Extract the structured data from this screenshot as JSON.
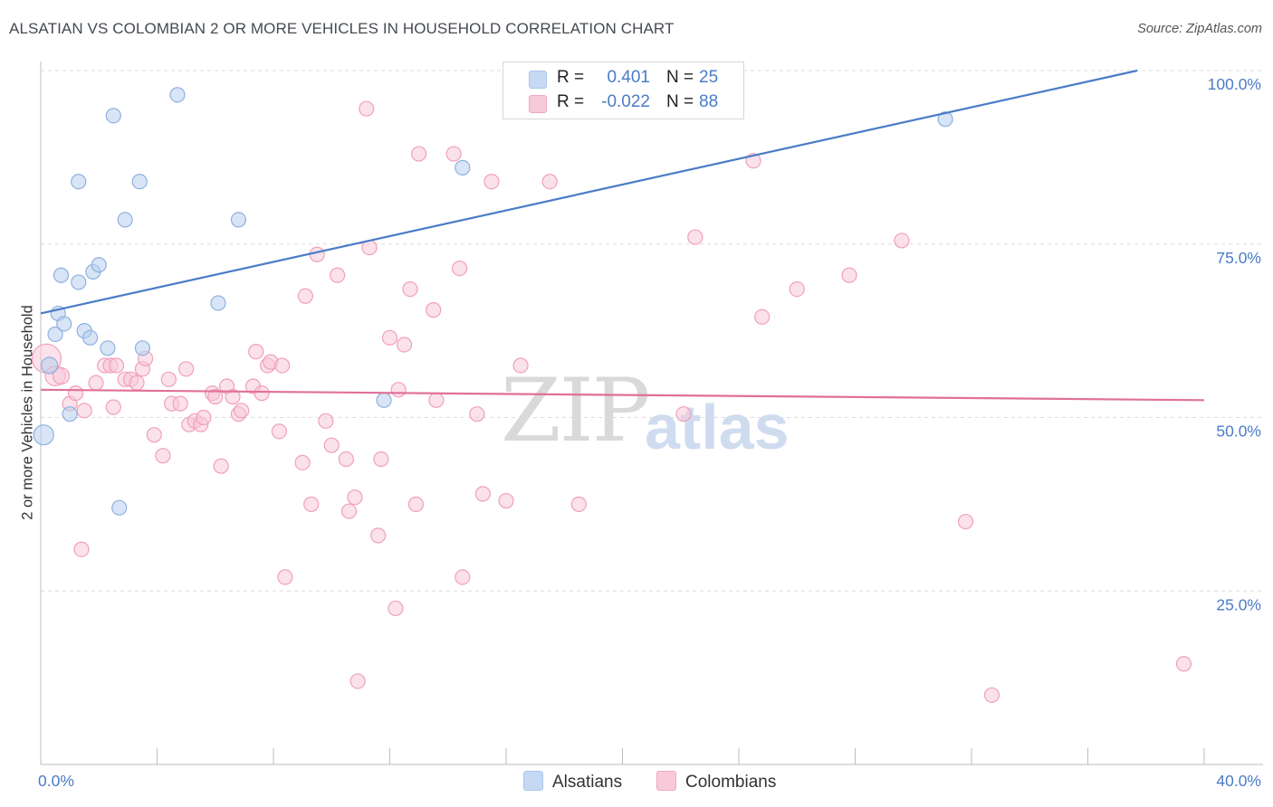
{
  "header": {
    "title": "ALSATIAN VS COLOMBIAN 2 OR MORE VEHICLES IN HOUSEHOLD CORRELATION CHART",
    "source": "Source: ZipAtlas.com"
  },
  "watermark": {
    "zip": "ZIP",
    "atlas": "atlas"
  },
  "legend": {
    "rows": [
      {
        "r_label": "R =",
        "r_value": "0.401",
        "n_label": "N =",
        "n_value": "25",
        "color": "#a9c6ec",
        "fill": "#c5d9f3"
      },
      {
        "r_label": "R =",
        "r_value": "-0.022",
        "n_label": "N =",
        "n_value": "88",
        "color": "#f2a6bf",
        "fill": "#f8cad9"
      }
    ]
  },
  "bottom_legend": {
    "alsatians": "Alsatians",
    "colombians": "Colombians"
  },
  "chart_data": {
    "type": "scatter",
    "title": "ALSATIAN VS COLOMBIAN 2 OR MORE VEHICLES IN HOUSEHOLD CORRELATION CHART",
    "xlabel": "",
    "ylabel": "2 or more Vehicles in Household",
    "xlim": [
      0,
      40
    ],
    "ylim": [
      0,
      100
    ],
    "x_tick_labels": [
      "0.0%",
      "40.0%"
    ],
    "y_ticks": [
      25,
      50,
      75,
      100
    ],
    "y_tick_labels": [
      "25.0%",
      "50.0%",
      "75.0%",
      "100.0%"
    ],
    "grid": true,
    "series": [
      {
        "name": "Alsatians",
        "color": "#4a7cc7",
        "fill": "#b8d0ee",
        "stroke": "#8fb0de",
        "trend": {
          "x": [
            0,
            37.7
          ],
          "y": [
            65.0,
            100.0
          ]
        },
        "points": [
          [
            0.3,
            57.5,
            9
          ],
          [
            0.1,
            47.5,
            11
          ],
          [
            0.5,
            62.0,
            8
          ],
          [
            0.6,
            65.0,
            8
          ],
          [
            0.7,
            70.5,
            8
          ],
          [
            0.8,
            63.5,
            8
          ],
          [
            1.0,
            50.5,
            8
          ],
          [
            1.3,
            69.5,
            8
          ],
          [
            1.3,
            84.0,
            8
          ],
          [
            1.5,
            62.5,
            8
          ],
          [
            1.7,
            61.5,
            8
          ],
          [
            1.8,
            71.0,
            8
          ],
          [
            2.0,
            72.0,
            8
          ],
          [
            2.3,
            60.0,
            8
          ],
          [
            2.5,
            93.5,
            8
          ],
          [
            2.7,
            37.0,
            8
          ],
          [
            2.9,
            78.5,
            8
          ],
          [
            3.4,
            84.0,
            8
          ],
          [
            3.5,
            60.0,
            8
          ],
          [
            4.7,
            96.5,
            8
          ],
          [
            6.1,
            66.5,
            8
          ],
          [
            6.8,
            78.5,
            8
          ],
          [
            11.8,
            52.5,
            8
          ],
          [
            14.5,
            86.0,
            8
          ],
          [
            31.1,
            93.0,
            8
          ]
        ]
      },
      {
        "name": "Colombians",
        "color": "#e0709a",
        "fill": "#f8c9d8",
        "stroke": "#f0a0bb",
        "trend": {
          "x": [
            0,
            40
          ],
          "y": [
            54.0,
            52.5
          ]
        },
        "points": [
          [
            0.2,
            58.5,
            16
          ],
          [
            0.5,
            56.0,
            11
          ],
          [
            0.7,
            56.0,
            9
          ],
          [
            1.0,
            52.0,
            8
          ],
          [
            1.2,
            53.5,
            8
          ],
          [
            1.4,
            31.0,
            8
          ],
          [
            1.5,
            51.0,
            8
          ],
          [
            1.9,
            55.0,
            8
          ],
          [
            2.2,
            57.5,
            8
          ],
          [
            2.4,
            57.5,
            8
          ],
          [
            2.5,
            51.5,
            8
          ],
          [
            2.6,
            57.5,
            8
          ],
          [
            2.9,
            55.5,
            8
          ],
          [
            3.1,
            55.5,
            8
          ],
          [
            3.3,
            55.0,
            8
          ],
          [
            3.5,
            57.0,
            8
          ],
          [
            3.6,
            58.5,
            8
          ],
          [
            3.9,
            47.5,
            8
          ],
          [
            4.2,
            44.5,
            8
          ],
          [
            4.4,
            55.5,
            8
          ],
          [
            4.5,
            52.0,
            8
          ],
          [
            4.8,
            52.0,
            8
          ],
          [
            5.0,
            57.0,
            8
          ],
          [
            5.1,
            49.0,
            8
          ],
          [
            5.3,
            49.5,
            8
          ],
          [
            5.5,
            49.0,
            8
          ],
          [
            5.6,
            50.0,
            8
          ],
          [
            5.9,
            53.5,
            8
          ],
          [
            6.0,
            53.0,
            8
          ],
          [
            6.2,
            43.0,
            8
          ],
          [
            6.4,
            54.5,
            8
          ],
          [
            6.6,
            53.0,
            8
          ],
          [
            6.8,
            50.5,
            8
          ],
          [
            6.9,
            51.0,
            8
          ],
          [
            7.3,
            54.5,
            8
          ],
          [
            7.4,
            59.5,
            8
          ],
          [
            7.6,
            53.5,
            8
          ],
          [
            7.8,
            57.5,
            8
          ],
          [
            7.9,
            58.0,
            8
          ],
          [
            8.2,
            48.0,
            8
          ],
          [
            8.3,
            57.5,
            8
          ],
          [
            8.4,
            27.0,
            8
          ],
          [
            9.0,
            43.5,
            8
          ],
          [
            9.1,
            67.5,
            8
          ],
          [
            9.3,
            37.5,
            8
          ],
          [
            9.5,
            73.5,
            8
          ],
          [
            9.8,
            49.5,
            8
          ],
          [
            10.0,
            46.0,
            8
          ],
          [
            10.2,
            70.5,
            8
          ],
          [
            10.5,
            44.0,
            8
          ],
          [
            10.6,
            36.5,
            8
          ],
          [
            10.8,
            38.5,
            8
          ],
          [
            10.9,
            12.0,
            8
          ],
          [
            11.2,
            94.5,
            8
          ],
          [
            11.3,
            74.5,
            8
          ],
          [
            11.6,
            33.0,
            8
          ],
          [
            11.7,
            44.0,
            8
          ],
          [
            12.0,
            61.5,
            8
          ],
          [
            12.2,
            22.5,
            8
          ],
          [
            12.3,
            54.0,
            8
          ],
          [
            12.5,
            60.5,
            8
          ],
          [
            12.7,
            68.5,
            8
          ],
          [
            12.9,
            37.5,
            8
          ],
          [
            13.0,
            88.0,
            8
          ],
          [
            13.5,
            65.5,
            8
          ],
          [
            13.6,
            52.5,
            8
          ],
          [
            14.2,
            88.0,
            8
          ],
          [
            14.4,
            71.5,
            8
          ],
          [
            14.5,
            27.0,
            8
          ],
          [
            15.0,
            50.5,
            8
          ],
          [
            15.2,
            39.0,
            8
          ],
          [
            15.5,
            84.0,
            8
          ],
          [
            16.0,
            38.0,
            8
          ],
          [
            16.5,
            57.5,
            8
          ],
          [
            17.5,
            84.0,
            8
          ],
          [
            18.5,
            37.5,
            8
          ],
          [
            22.1,
            50.5,
            8
          ],
          [
            22.5,
            76.0,
            8
          ],
          [
            24.5,
            87.0,
            8
          ],
          [
            24.8,
            64.5,
            8
          ],
          [
            26.0,
            68.5,
            8
          ],
          [
            27.8,
            70.5,
            8
          ],
          [
            29.6,
            75.5,
            8
          ],
          [
            31.8,
            35.0,
            8
          ],
          [
            32.7,
            10.0,
            8
          ],
          [
            39.3,
            14.5,
            8
          ]
        ]
      }
    ]
  }
}
